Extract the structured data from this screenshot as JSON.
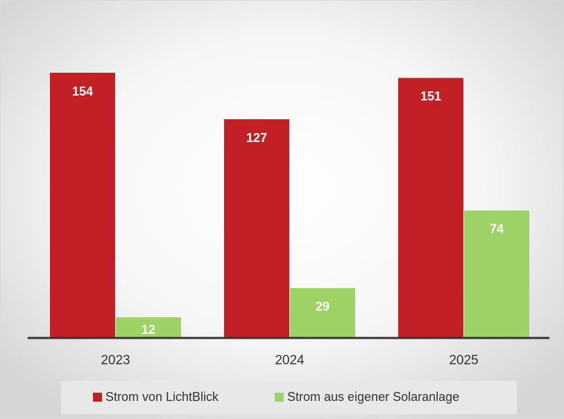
{
  "chart_data": {
    "type": "bar",
    "categories": [
      "2023",
      "2024",
      "2025"
    ],
    "series": [
      {
        "name": "Strom von LichtBlick",
        "color": "#c32026",
        "values": [
          154,
          127,
          151
        ]
      },
      {
        "name": "Strom aus eigener Solaranlage",
        "color": "#9fd266",
        "values": [
          12,
          29,
          74
        ]
      }
    ],
    "legend": "bottom"
  }
}
